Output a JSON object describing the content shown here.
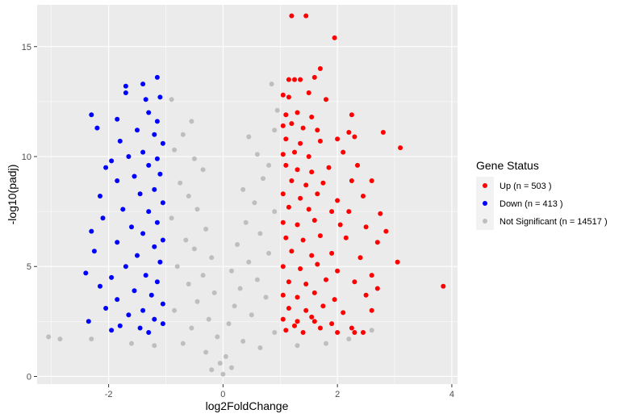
{
  "chart_data": {
    "type": "scatter",
    "title": "",
    "xlabel": "log2FoldChange",
    "ylabel": "-log10(padj)",
    "xlim": [
      -3.25,
      4.1
    ],
    "ylim": [
      -0.35,
      16.9
    ],
    "xticks": [
      -2,
      0,
      2,
      4
    ],
    "yticks": [
      0,
      5,
      10,
      15
    ],
    "grid": true,
    "legend": {
      "title": "Gene Status",
      "placement": "right",
      "entries": [
        {
          "label": "Up (n = 503 )",
          "color": "#ff0000"
        },
        {
          "label": "Down (n = 413 )",
          "color": "#0000ff"
        },
        {
          "label": "Not Significant (n = 14517 )",
          "color": "#bebebe"
        }
      ]
    },
    "series": [
      {
        "name": "Up (n = 503 )",
        "color": "#ff0000",
        "points": [
          [
            1.2,
            16.4
          ],
          [
            1.45,
            16.4
          ],
          [
            1.95,
            15.4
          ],
          [
            1.7,
            14.0
          ],
          [
            1.15,
            13.5
          ],
          [
            1.25,
            13.5
          ],
          [
            1.35,
            13.5
          ],
          [
            1.6,
            13.6
          ],
          [
            1.05,
            12.8
          ],
          [
            1.15,
            12.7
          ],
          [
            1.5,
            12.9
          ],
          [
            1.8,
            12.6
          ],
          [
            1.1,
            11.9
          ],
          [
            1.3,
            12.0
          ],
          [
            1.55,
            11.8
          ],
          [
            2.25,
            11.9
          ],
          [
            1.05,
            11.4
          ],
          [
            1.2,
            11.5
          ],
          [
            1.4,
            11.3
          ],
          [
            1.65,
            11.2
          ],
          [
            2.2,
            11.1
          ],
          [
            2.8,
            11.1
          ],
          [
            1.1,
            10.8
          ],
          [
            1.35,
            10.6
          ],
          [
            1.7,
            10.7
          ],
          [
            2.0,
            10.8
          ],
          [
            2.3,
            10.9
          ],
          [
            3.1,
            10.4
          ],
          [
            1.05,
            10.1
          ],
          [
            1.25,
            10.2
          ],
          [
            1.5,
            10.0
          ],
          [
            2.1,
            10.2
          ],
          [
            1.1,
            9.6
          ],
          [
            1.3,
            9.4
          ],
          [
            1.55,
            9.3
          ],
          [
            1.85,
            9.5
          ],
          [
            2.35,
            9.6
          ],
          [
            1.2,
            8.9
          ],
          [
            1.45,
            8.7
          ],
          [
            1.75,
            8.8
          ],
          [
            2.25,
            8.9
          ],
          [
            2.6,
            8.9
          ],
          [
            1.05,
            8.3
          ],
          [
            1.35,
            8.1
          ],
          [
            1.65,
            8.3
          ],
          [
            2.0,
            8.0
          ],
          [
            2.45,
            8.2
          ],
          [
            1.15,
            7.7
          ],
          [
            1.5,
            7.6
          ],
          [
            1.9,
            7.5
          ],
          [
            2.2,
            7.5
          ],
          [
            2.75,
            7.4
          ],
          [
            1.05,
            7.0
          ],
          [
            1.3,
            6.9
          ],
          [
            1.6,
            7.1
          ],
          [
            2.05,
            6.9
          ],
          [
            2.5,
            6.8
          ],
          [
            2.85,
            6.6
          ],
          [
            1.1,
            6.3
          ],
          [
            1.4,
            6.2
          ],
          [
            1.7,
            6.4
          ],
          [
            2.15,
            6.3
          ],
          [
            2.7,
            6.1
          ],
          [
            1.2,
            5.7
          ],
          [
            1.55,
            5.5
          ],
          [
            1.9,
            5.6
          ],
          [
            2.4,
            5.4
          ],
          [
            1.05,
            5.0
          ],
          [
            1.35,
            4.9
          ],
          [
            1.65,
            5.1
          ],
          [
            2.0,
            4.8
          ],
          [
            2.6,
            4.6
          ],
          [
            3.05,
            5.2
          ],
          [
            1.15,
            4.3
          ],
          [
            1.45,
            4.2
          ],
          [
            1.8,
            4.4
          ],
          [
            2.3,
            4.3
          ],
          [
            2.7,
            4.0
          ],
          [
            3.85,
            4.1
          ],
          [
            1.05,
            3.7
          ],
          [
            1.3,
            3.6
          ],
          [
            1.6,
            3.8
          ],
          [
            1.95,
            3.5
          ],
          [
            2.5,
            3.7
          ],
          [
            1.15,
            3.1
          ],
          [
            1.45,
            3.0
          ],
          [
            1.75,
            3.2
          ],
          [
            2.1,
            2.9
          ],
          [
            2.6,
            3.0
          ],
          [
            1.05,
            2.6
          ],
          [
            1.3,
            2.5
          ],
          [
            1.55,
            2.7
          ],
          [
            1.9,
            2.4
          ],
          [
            2.25,
            2.2
          ],
          [
            1.1,
            2.1
          ],
          [
            1.4,
            2.0
          ],
          [
            1.7,
            2.2
          ],
          [
            2.0,
            2.0
          ],
          [
            2.45,
            2.0
          ],
          [
            1.25,
            2.3
          ],
          [
            1.6,
            2.5
          ],
          [
            2.3,
            2.0
          ]
        ]
      },
      {
        "name": "Down (n = 413 )",
        "color": "#0000ff",
        "points": [
          [
            -1.15,
            13.6
          ],
          [
            -1.4,
            13.3
          ],
          [
            -1.7,
            13.2
          ],
          [
            -1.7,
            12.9
          ],
          [
            -1.35,
            12.6
          ],
          [
            -1.1,
            12.7
          ],
          [
            -1.3,
            12.0
          ],
          [
            -2.3,
            11.9
          ],
          [
            -1.85,
            11.7
          ],
          [
            -1.15,
            11.6
          ],
          [
            -2.2,
            11.3
          ],
          [
            -1.5,
            11.2
          ],
          [
            -1.2,
            11.0
          ],
          [
            -1.8,
            10.7
          ],
          [
            -1.05,
            10.6
          ],
          [
            -1.4,
            10.2
          ],
          [
            -1.65,
            10.0
          ],
          [
            -1.15,
            9.9
          ],
          [
            -1.95,
            9.8
          ],
          [
            -2.05,
            9.5
          ],
          [
            -1.3,
            9.6
          ],
          [
            -1.1,
            9.2
          ],
          [
            -1.55,
            9.1
          ],
          [
            -1.85,
            8.9
          ],
          [
            -1.2,
            8.5
          ],
          [
            -1.45,
            8.3
          ],
          [
            -2.15,
            8.2
          ],
          [
            -1.05,
            7.9
          ],
          [
            -1.75,
            7.6
          ],
          [
            -1.3,
            7.5
          ],
          [
            -2.1,
            7.2
          ],
          [
            -1.15,
            7.0
          ],
          [
            -1.6,
            6.8
          ],
          [
            -2.3,
            6.6
          ],
          [
            -1.4,
            6.5
          ],
          [
            -1.05,
            6.2
          ],
          [
            -1.85,
            6.1
          ],
          [
            -1.2,
            5.9
          ],
          [
            -2.25,
            5.7
          ],
          [
            -1.5,
            5.5
          ],
          [
            -1.1,
            5.2
          ],
          [
            -1.7,
            5.0
          ],
          [
            -2.4,
            4.7
          ],
          [
            -1.35,
            4.6
          ],
          [
            -1.95,
            4.5
          ],
          [
            -1.15,
            4.3
          ],
          [
            -2.15,
            4.1
          ],
          [
            -1.55,
            3.9
          ],
          [
            -1.25,
            3.7
          ],
          [
            -1.85,
            3.5
          ],
          [
            -1.05,
            3.3
          ],
          [
            -2.05,
            3.1
          ],
          [
            -1.4,
            3.0
          ],
          [
            -1.65,
            2.8
          ],
          [
            -2.35,
            2.5
          ],
          [
            -1.2,
            2.6
          ],
          [
            -1.8,
            2.3
          ],
          [
            -1.45,
            2.2
          ],
          [
            -1.05,
            2.4
          ],
          [
            -1.3,
            2.0
          ],
          [
            -1.95,
            2.1
          ]
        ]
      },
      {
        "name": "Not Significant (n = 14517 )",
        "color": "#bebebe",
        "points": [
          [
            0.85,
            13.3
          ],
          [
            -0.9,
            12.6
          ],
          [
            0.95,
            12.1
          ],
          [
            -0.55,
            11.6
          ],
          [
            0.9,
            11.2
          ],
          [
            -0.7,
            11.0
          ],
          [
            0.45,
            10.9
          ],
          [
            -0.85,
            10.3
          ],
          [
            0.6,
            10.1
          ],
          [
            -0.5,
            9.9
          ],
          [
            0.8,
            9.6
          ],
          [
            -0.35,
            9.4
          ],
          [
            0.7,
            9.0
          ],
          [
            -0.75,
            8.8
          ],
          [
            0.35,
            8.5
          ],
          [
            -0.6,
            8.2
          ],
          [
            0.55,
            7.9
          ],
          [
            -0.45,
            7.6
          ],
          [
            0.9,
            7.5
          ],
          [
            -0.9,
            7.2
          ],
          [
            0.4,
            7.0
          ],
          [
            -0.3,
            6.7
          ],
          [
            0.65,
            6.5
          ],
          [
            -0.65,
            6.2
          ],
          [
            0.25,
            6.0
          ],
          [
            -0.5,
            5.8
          ],
          [
            0.8,
            5.6
          ],
          [
            -0.2,
            5.4
          ],
          [
            0.45,
            5.2
          ],
          [
            -0.8,
            5.0
          ],
          [
            0.15,
            4.8
          ],
          [
            -0.35,
            4.6
          ],
          [
            0.6,
            4.4
          ],
          [
            -0.6,
            4.2
          ],
          [
            0.3,
            4.0
          ],
          [
            -0.15,
            3.8
          ],
          [
            0.75,
            3.6
          ],
          [
            -0.45,
            3.4
          ],
          [
            0.2,
            3.2
          ],
          [
            -0.85,
            3.0
          ],
          [
            0.5,
            2.8
          ],
          [
            -0.25,
            2.6
          ],
          [
            0.1,
            2.4
          ],
          [
            -0.55,
            2.2
          ],
          [
            0.9,
            2.0
          ],
          [
            -0.1,
            1.8
          ],
          [
            0.35,
            1.6
          ],
          [
            -0.7,
            1.5
          ],
          [
            0.65,
            1.3
          ],
          [
            -0.3,
            1.1
          ],
          [
            0.05,
            0.9
          ],
          [
            -0.05,
            0.6
          ],
          [
            0.15,
            0.4
          ],
          [
            -0.2,
            0.3
          ],
          [
            0.0,
            0.1
          ],
          [
            -3.05,
            1.8
          ],
          [
            -2.85,
            1.7
          ],
          [
            -2.3,
            1.7
          ],
          [
            -1.6,
            1.5
          ],
          [
            -1.2,
            1.4
          ],
          [
            1.3,
            1.4
          ],
          [
            1.8,
            1.5
          ],
          [
            2.2,
            1.7
          ],
          [
            2.6,
            2.1
          ]
        ]
      }
    ]
  }
}
